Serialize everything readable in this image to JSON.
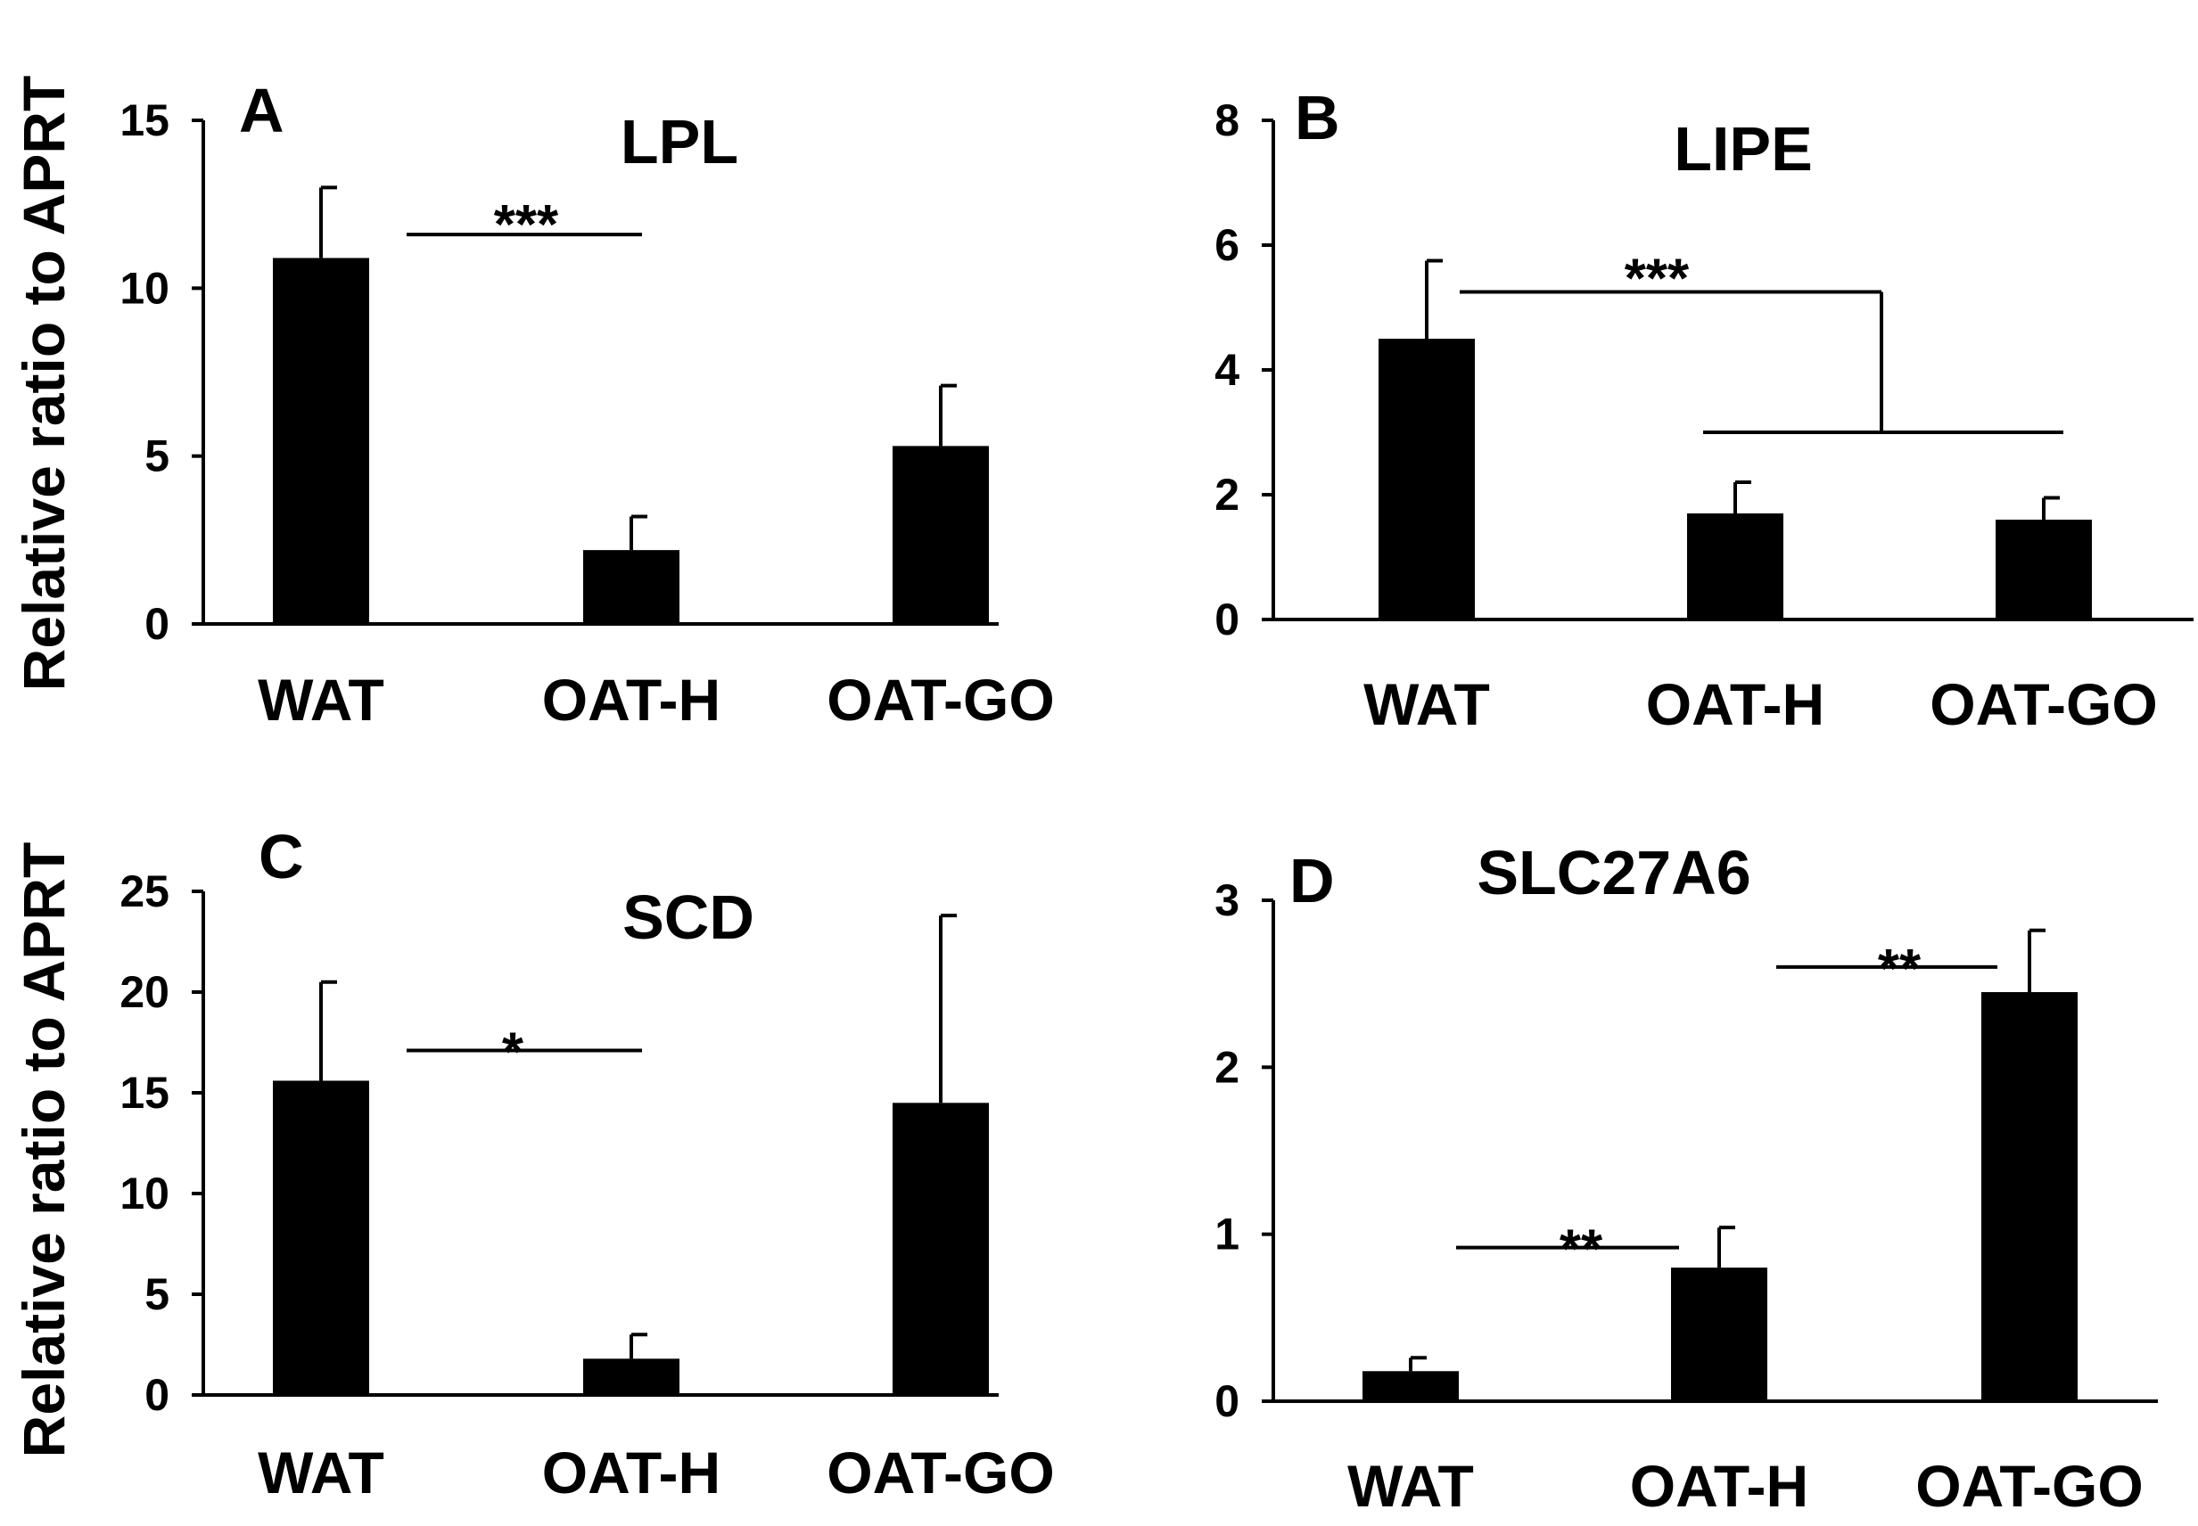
{
  "figure": {
    "ylabel": "Relative ratio to APRT"
  },
  "chart_data": [
    {
      "type": "bar",
      "panel": "A",
      "title": "LPL",
      "categories": [
        "WAT",
        "OAT-H",
        "OAT-GO"
      ],
      "values": [
        10.9,
        2.2,
        5.3
      ],
      "errors": [
        2.1,
        1.0,
        1.8
      ],
      "ylim": [
        0,
        15
      ],
      "yticks": [
        0,
        5,
        10,
        15
      ],
      "ylabel": "Relative ratio to APRT",
      "xlabel": "",
      "significance": [
        {
          "label": "***",
          "from": "WAT",
          "to": "OAT-H"
        }
      ]
    },
    {
      "type": "bar",
      "panel": "B",
      "title": "LIPE",
      "categories": [
        "WAT",
        "OAT-H",
        "OAT-GO"
      ],
      "values": [
        4.5,
        1.7,
        1.6
      ],
      "errors": [
        1.25,
        0.5,
        0.35
      ],
      "ylim": [
        0,
        8
      ],
      "yticks": [
        0,
        2,
        4,
        6,
        8
      ],
      "ylabel": "",
      "xlabel": "",
      "significance": [
        {
          "label": "***",
          "from": "WAT",
          "to": "OAT-H + OAT-GO"
        }
      ]
    },
    {
      "type": "bar",
      "panel": "C",
      "title": "SCD",
      "categories": [
        "WAT",
        "OAT-H",
        "OAT-GO"
      ],
      "values": [
        15.6,
        1.8,
        14.5
      ],
      "errors": [
        4.9,
        1.2,
        9.3
      ],
      "ylim": [
        0,
        25
      ],
      "yticks": [
        0,
        5,
        10,
        15,
        20,
        25
      ],
      "ylabel": "Relative ratio to APRT",
      "xlabel": "",
      "significance": [
        {
          "label": "*",
          "from": "WAT",
          "to": "OAT-H"
        }
      ]
    },
    {
      "type": "bar",
      "panel": "D",
      "title": "SLC27A6",
      "categories": [
        "WAT",
        "OAT-H",
        "OAT-GO"
      ],
      "values": [
        0.18,
        0.8,
        2.45
      ],
      "errors": [
        0.08,
        0.24,
        0.37
      ],
      "ylim": [
        0,
        3
      ],
      "yticks": [
        0,
        1,
        2,
        3
      ],
      "ylabel": "",
      "xlabel": "",
      "significance": [
        {
          "label": "**",
          "from": "WAT",
          "to": "OAT-H"
        },
        {
          "label": "**",
          "from": "OAT-H",
          "to": "OAT-GO"
        }
      ]
    }
  ]
}
